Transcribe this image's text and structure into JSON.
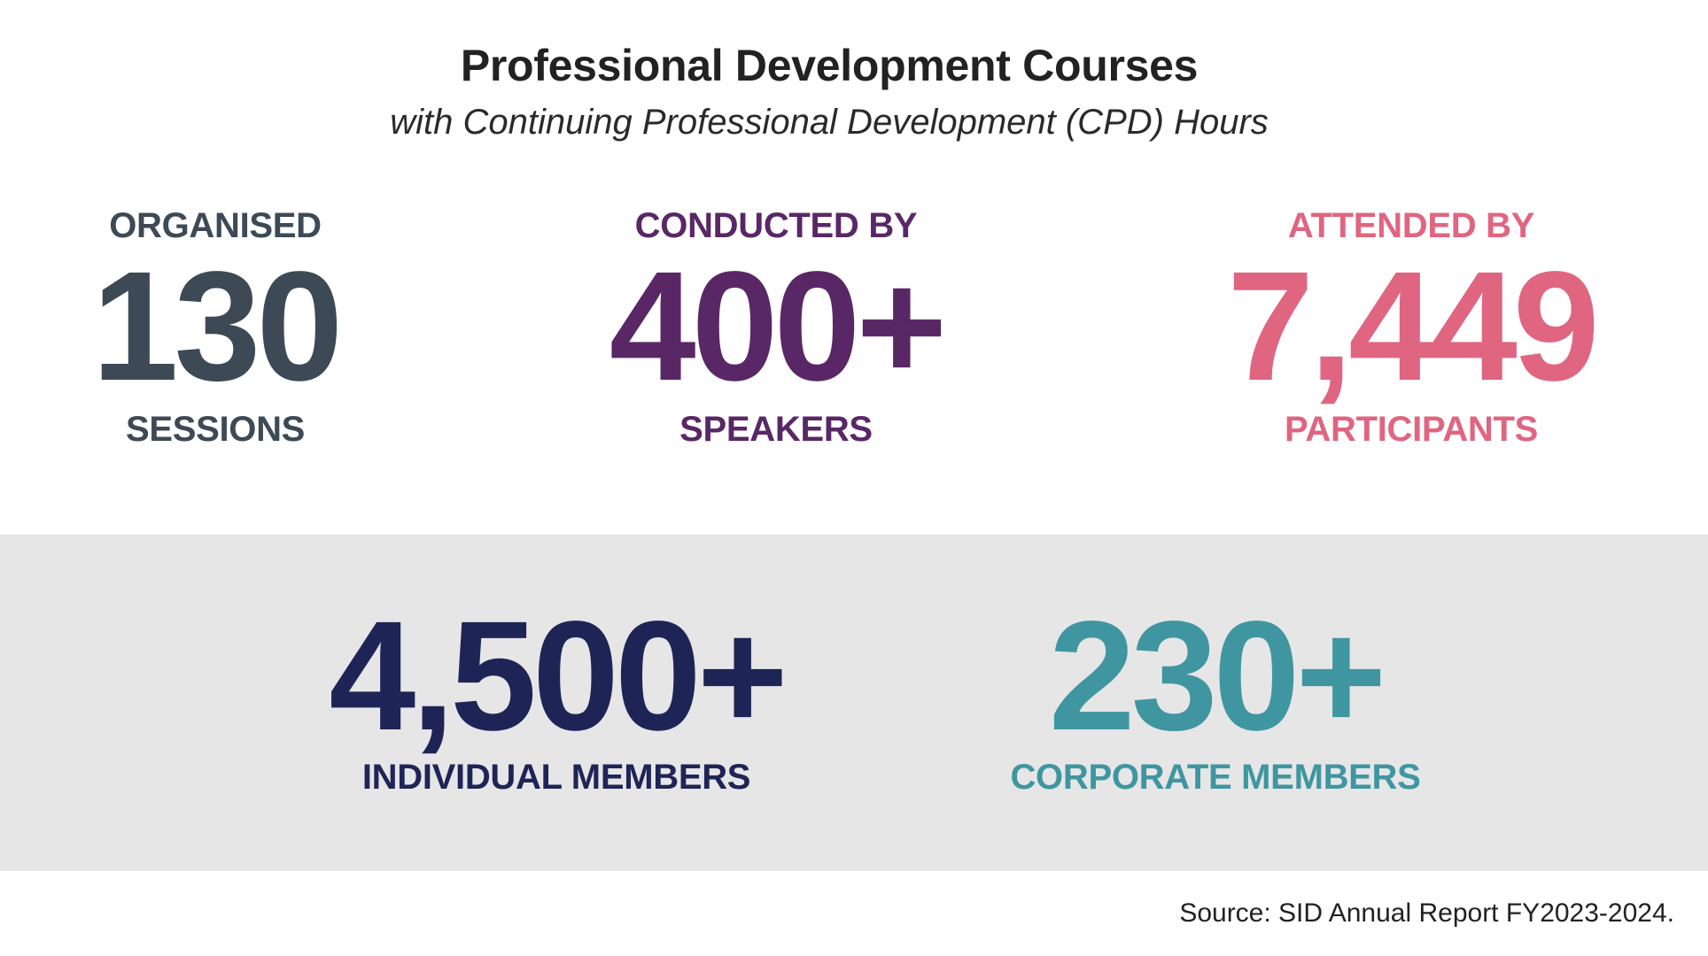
{
  "header": {
    "title": "Professional Development Courses",
    "subtitle": "with Continuing Professional Development (CPD) Hours"
  },
  "stats": [
    {
      "label_top": "ORGANISED",
      "value": "130",
      "label_bottom": "SESSIONS",
      "color": "#3d4a55"
    },
    {
      "label_top": "CONDUCTED BY",
      "value": "400+",
      "label_bottom": "SPEAKERS",
      "color": "#5a2766"
    },
    {
      "label_top": "ATTENDED BY",
      "value": "7,449",
      "label_bottom": "PARTICIPANTS",
      "color": "#e06580"
    }
  ],
  "members": [
    {
      "value": "4,500+",
      "label": "INDIVIDUAL MEMBERS",
      "color": "#1e2556"
    },
    {
      "value": "230+",
      "label": "CORPORATE MEMBERS",
      "color": "#3f96a1"
    }
  ],
  "band_color": "#e6e6e7",
  "source": "Source: SID Annual Report FY2023-2024."
}
